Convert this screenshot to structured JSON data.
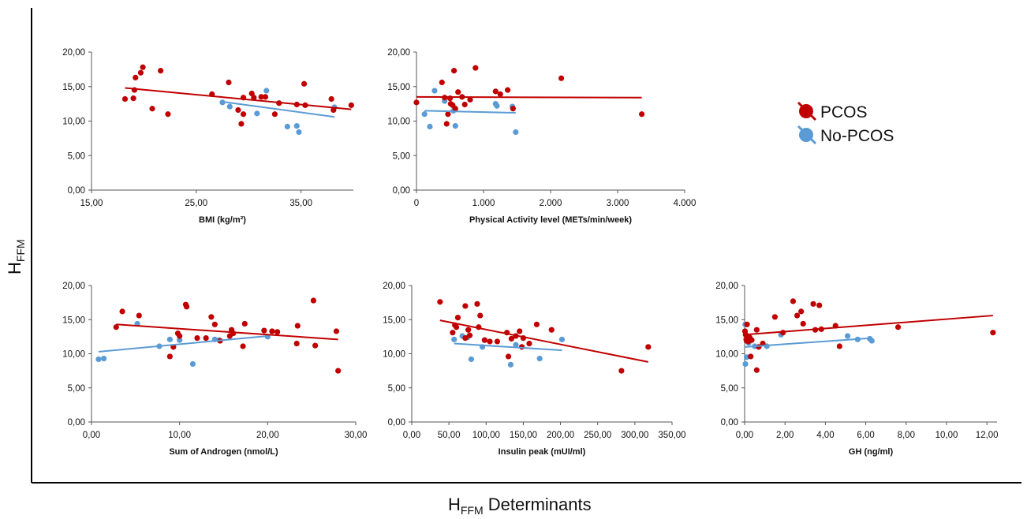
{
  "figure": {
    "y_title": "H",
    "y_title_sub": "FFM",
    "x_title": "H",
    "x_title_sub": "FFM",
    "x_title_rest": " Determinants"
  },
  "legend": [
    {
      "label": "PCOS",
      "color": "#c00000"
    },
    {
      "label": "No-PCOS",
      "color": "#5b9bd5"
    }
  ],
  "chart_data": [
    {
      "type": "scatter",
      "xlabel": "BMI (kg/m²)",
      "xlim": [
        15,
        40
      ],
      "ylim": [
        0,
        20
      ],
      "xticks": [
        15,
        25,
        35
      ],
      "xtick_labels": [
        "15,00",
        "25,00",
        "35,00"
      ],
      "yticks": [
        0,
        5,
        10,
        15,
        20
      ],
      "ytick_labels": [
        "0,00",
        "5,00",
        "10,00",
        "15,00",
        "20,00"
      ],
      "series": [
        {
          "color": "#c00000",
          "points": [
            [
              18.2,
              13.2
            ],
            [
              19.0,
              13.3
            ],
            [
              19.1,
              14.5
            ],
            [
              19.2,
              16.3
            ],
            [
              19.7,
              17.0
            ],
            [
              19.9,
              17.8
            ],
            [
              20.8,
              11.8
            ],
            [
              21.6,
              17.3
            ],
            [
              22.3,
              11.0
            ],
            [
              26.5,
              13.9
            ],
            [
              28.1,
              15.6
            ],
            [
              29.0,
              11.6
            ],
            [
              29.5,
              11.0
            ],
            [
              29.3,
              9.6
            ],
            [
              29.5,
              13.4
            ],
            [
              30.3,
              14.0
            ],
            [
              30.5,
              13.4
            ],
            [
              31.2,
              13.5
            ],
            [
              31.6,
              13.5
            ],
            [
              32.5,
              11.0
            ],
            [
              32.9,
              12.6
            ],
            [
              34.6,
              12.4
            ],
            [
              35.3,
              15.4
            ],
            [
              35.4,
              12.3
            ],
            [
              37.9,
              13.2
            ],
            [
              38.1,
              11.6
            ],
            [
              39.8,
              12.3
            ]
          ],
          "trend": [
            [
              18.2,
              14.8
            ],
            [
              39.8,
              11.7
            ]
          ]
        },
        {
          "color": "#5b9bd5",
          "points": [
            [
              27.5,
              12.7
            ],
            [
              28.2,
              12.1
            ],
            [
              30.8,
              11.1
            ],
            [
              31.7,
              14.4
            ],
            [
              33.7,
              9.2
            ],
            [
              34.6,
              9.3
            ],
            [
              34.8,
              8.4
            ],
            [
              38.2,
              12.0
            ]
          ],
          "trend": [
            [
              27.5,
              12.8
            ],
            [
              38.2,
              10.6
            ]
          ]
        }
      ]
    },
    {
      "type": "scatter",
      "xlabel": "Physical Activity level (METs/min/week)",
      "xlim": [
        0,
        4000
      ],
      "ylim": [
        0,
        20
      ],
      "xticks": [
        0,
        1000,
        2000,
        3000,
        4000
      ],
      "xtick_labels": [
        "0",
        "1.000",
        "2.000",
        "3.000",
        "4.000"
      ],
      "yticks": [
        0,
        5,
        10,
        15,
        20
      ],
      "ytick_labels": [
        "0,00",
        "5,00",
        "10,00",
        "15,00",
        "20,00"
      ],
      "series": [
        {
          "color": "#c00000",
          "points": [
            [
              0,
              12.7
            ],
            [
              380,
              15.6
            ],
            [
              420,
              13.4
            ],
            [
              450,
              9.6
            ],
            [
              470,
              11.0
            ],
            [
              500,
              13.3
            ],
            [
              510,
              12.5
            ],
            [
              540,
              12.3
            ],
            [
              560,
              17.3
            ],
            [
              580,
              11.8
            ],
            [
              620,
              14.2
            ],
            [
              680,
              13.5
            ],
            [
              720,
              12.4
            ],
            [
              800,
              13.1
            ],
            [
              880,
              17.7
            ],
            [
              1180,
              14.3
            ],
            [
              1250,
              13.9
            ],
            [
              1360,
              14.5
            ],
            [
              1440,
              11.8
            ],
            [
              2160,
              16.2
            ],
            [
              3360,
              11.0
            ]
          ],
          "trend": [
            [
              0,
              13.5
            ],
            [
              3360,
              13.4
            ]
          ]
        },
        {
          "color": "#5b9bd5",
          "points": [
            [
              120,
              11.0
            ],
            [
              200,
              9.2
            ],
            [
              270,
              14.4
            ],
            [
              420,
              12.9
            ],
            [
              550,
              11.5
            ],
            [
              580,
              9.3
            ],
            [
              1180,
              12.5
            ],
            [
              1200,
              12.2
            ],
            [
              1430,
              12.1
            ],
            [
              1480,
              8.4
            ]
          ],
          "trend": [
            [
              120,
              11.5
            ],
            [
              1480,
              11.2
            ]
          ]
        }
      ]
    },
    {
      "type": "scatter",
      "xlabel": "Sum of Androgen (nmol/L)",
      "xlim": [
        0,
        30
      ],
      "ylim": [
        0,
        20
      ],
      "xticks": [
        0,
        10,
        20,
        30
      ],
      "xtick_labels": [
        "0,00",
        "10,00",
        "20,00",
        "30,00"
      ],
      "yticks": [
        0,
        5,
        10,
        15,
        20
      ],
      "ytick_labels": [
        "0,00",
        "5,00",
        "10,00",
        "15,00",
        "20,00"
      ],
      "series": [
        {
          "color": "#c00000",
          "points": [
            [
              2.8,
              13.9
            ],
            [
              3.5,
              16.2
            ],
            [
              5.4,
              15.6
            ],
            [
              8.9,
              9.6
            ],
            [
              9.3,
              11.0
            ],
            [
              9.8,
              13.0
            ],
            [
              10.0,
              12.6
            ],
            [
              10.7,
              17.2
            ],
            [
              10.8,
              16.9
            ],
            [
              12.0,
              12.3
            ],
            [
              13.0,
              12.3
            ],
            [
              13.6,
              15.4
            ],
            [
              14.0,
              14.3
            ],
            [
              14.6,
              11.9
            ],
            [
              15.7,
              12.6
            ],
            [
              15.9,
              13.5
            ],
            [
              16.1,
              13.0
            ],
            [
              17.2,
              11.1
            ],
            [
              17.4,
              14.4
            ],
            [
              19.6,
              13.4
            ],
            [
              20.5,
              13.3
            ],
            [
              21.1,
              13.2
            ],
            [
              23.3,
              11.5
            ],
            [
              23.4,
              14.1
            ],
            [
              25.2,
              17.8
            ],
            [
              25.4,
              11.2
            ],
            [
              27.8,
              13.3
            ],
            [
              28.0,
              7.5
            ]
          ],
          "trend": [
            [
              2.8,
              14.3
            ],
            [
              28.0,
              12.1
            ]
          ]
        },
        {
          "color": "#5b9bd5",
          "points": [
            [
              0.8,
              9.2
            ],
            [
              1.4,
              9.3
            ],
            [
              5.2,
              14.4
            ],
            [
              7.7,
              11.1
            ],
            [
              8.9,
              12.1
            ],
            [
              10.0,
              12.0
            ],
            [
              11.5,
              8.5
            ],
            [
              14.0,
              12.1
            ],
            [
              14.5,
              12.0
            ],
            [
              20.0,
              12.5
            ]
          ],
          "trend": [
            [
              0.8,
              10.3
            ],
            [
              20.0,
              12.6
            ]
          ]
        }
      ]
    },
    {
      "type": "scatter",
      "xlabel": "Insulin peak (mUI/ml)",
      "xlim": [
        0,
        350
      ],
      "ylim": [
        0,
        20
      ],
      "xticks": [
        0,
        50,
        100,
        150,
        200,
        250,
        300,
        350
      ],
      "xtick_labels": [
        "0,00",
        "50,00",
        "100,00",
        "150,00",
        "200,00",
        "250,00",
        "300,00",
        "350,00"
      ],
      "yticks": [
        0,
        5,
        10,
        15,
        20
      ],
      "ytick_labels": [
        "0,00",
        "5,00",
        "10,00",
        "15,00",
        "20,00"
      ],
      "series": [
        {
          "color": "#c00000",
          "points": [
            [
              38,
              17.6
            ],
            [
              55,
              13.1
            ],
            [
              58,
              14.2
            ],
            [
              60,
              13.9
            ],
            [
              62,
              15.3
            ],
            [
              72,
              17.0
            ],
            [
              72,
              12.3
            ],
            [
              76,
              13.5
            ],
            [
              78,
              12.7
            ],
            [
              88,
              17.3
            ],
            [
              90,
              13.9
            ],
            [
              92,
              15.6
            ],
            [
              98,
              12.0
            ],
            [
              105,
              11.8
            ],
            [
              115,
              11.8
            ],
            [
              128,
              13.1
            ],
            [
              130,
              9.6
            ],
            [
              134,
              12.2
            ],
            [
              140,
              12.6
            ],
            [
              145,
              13.3
            ],
            [
              148,
              11.0
            ],
            [
              150,
              12.3
            ],
            [
              158,
              11.5
            ],
            [
              168,
              14.3
            ],
            [
              188,
              13.5
            ],
            [
              282,
              7.5
            ],
            [
              318,
              11.0
            ]
          ],
          "trend": [
            [
              38,
              14.9
            ],
            [
              318,
              8.8
            ]
          ]
        },
        {
          "color": "#5b9bd5",
          "points": [
            [
              57,
              12.1
            ],
            [
              68,
              12.6
            ],
            [
              75,
              12.4
            ],
            [
              80,
              9.2
            ],
            [
              95,
              11.0
            ],
            [
              98,
              12.0
            ],
            [
              133,
              8.4
            ],
            [
              140,
              11.3
            ],
            [
              172,
              9.3
            ],
            [
              202,
              12.1
            ]
          ],
          "trend": [
            [
              57,
              11.5
            ],
            [
              202,
              10.5
            ]
          ]
        }
      ]
    },
    {
      "type": "scatter",
      "xlabel": "GH (ng/ml)",
      "xlim": [
        0,
        12.5
      ],
      "ylim": [
        0,
        20
      ],
      "xticks": [
        0,
        2,
        4,
        6,
        8,
        10,
        12
      ],
      "xtick_labels": [
        "0,00",
        "2,00",
        "4,00",
        "6,00",
        "8,00",
        "10,00",
        "12,00"
      ],
      "yticks": [
        0,
        5,
        10,
        15,
        20
      ],
      "ytick_labels": [
        "0,00",
        "5,00",
        "10,00",
        "15,00",
        "20,00"
      ],
      "series": [
        {
          "color": "#c00000",
          "points": [
            [
              0.02,
              13.3
            ],
            [
              0.05,
              12.8
            ],
            [
              0.08,
              12.1
            ],
            [
              0.1,
              11.9
            ],
            [
              0.12,
              14.3
            ],
            [
              0.15,
              12.5
            ],
            [
              0.18,
              11.8
            ],
            [
              0.2,
              12.2
            ],
            [
              0.25,
              12.4
            ],
            [
              0.3,
              9.6
            ],
            [
              0.35,
              12.0
            ],
            [
              0.6,
              13.5
            ],
            [
              0.6,
              7.6
            ],
            [
              0.7,
              11.0
            ],
            [
              0.9,
              11.5
            ],
            [
              1.5,
              15.4
            ],
            [
              1.9,
              13.1
            ],
            [
              2.4,
              17.7
            ],
            [
              2.6,
              15.6
            ],
            [
              2.8,
              16.2
            ],
            [
              2.9,
              14.4
            ],
            [
              3.4,
              17.3
            ],
            [
              3.5,
              13.5
            ],
            [
              3.7,
              17.1
            ],
            [
              3.8,
              13.6
            ],
            [
              4.5,
              14.1
            ],
            [
              4.7,
              11.1
            ],
            [
              7.6,
              13.9
            ],
            [
              12.3,
              13.1
            ]
          ],
          "trend": [
            [
              0.02,
              12.8
            ],
            [
              12.3,
              15.6
            ]
          ]
        },
        {
          "color": "#5b9bd5",
          "points": [
            [
              0.03,
              14.3
            ],
            [
              0.04,
              8.5
            ],
            [
              0.1,
              9.5
            ],
            [
              0.15,
              12.3
            ],
            [
              0.2,
              11.6
            ],
            [
              0.5,
              11.1
            ],
            [
              1.1,
              11.1
            ],
            [
              1.8,
              12.8
            ],
            [
              5.1,
              12.6
            ],
            [
              5.6,
              12.1
            ],
            [
              6.2,
              12.2
            ],
            [
              6.3,
              11.9
            ]
          ],
          "trend": [
            [
              0.03,
              11.0
            ],
            [
              6.3,
              12.3
            ]
          ]
        }
      ]
    }
  ]
}
